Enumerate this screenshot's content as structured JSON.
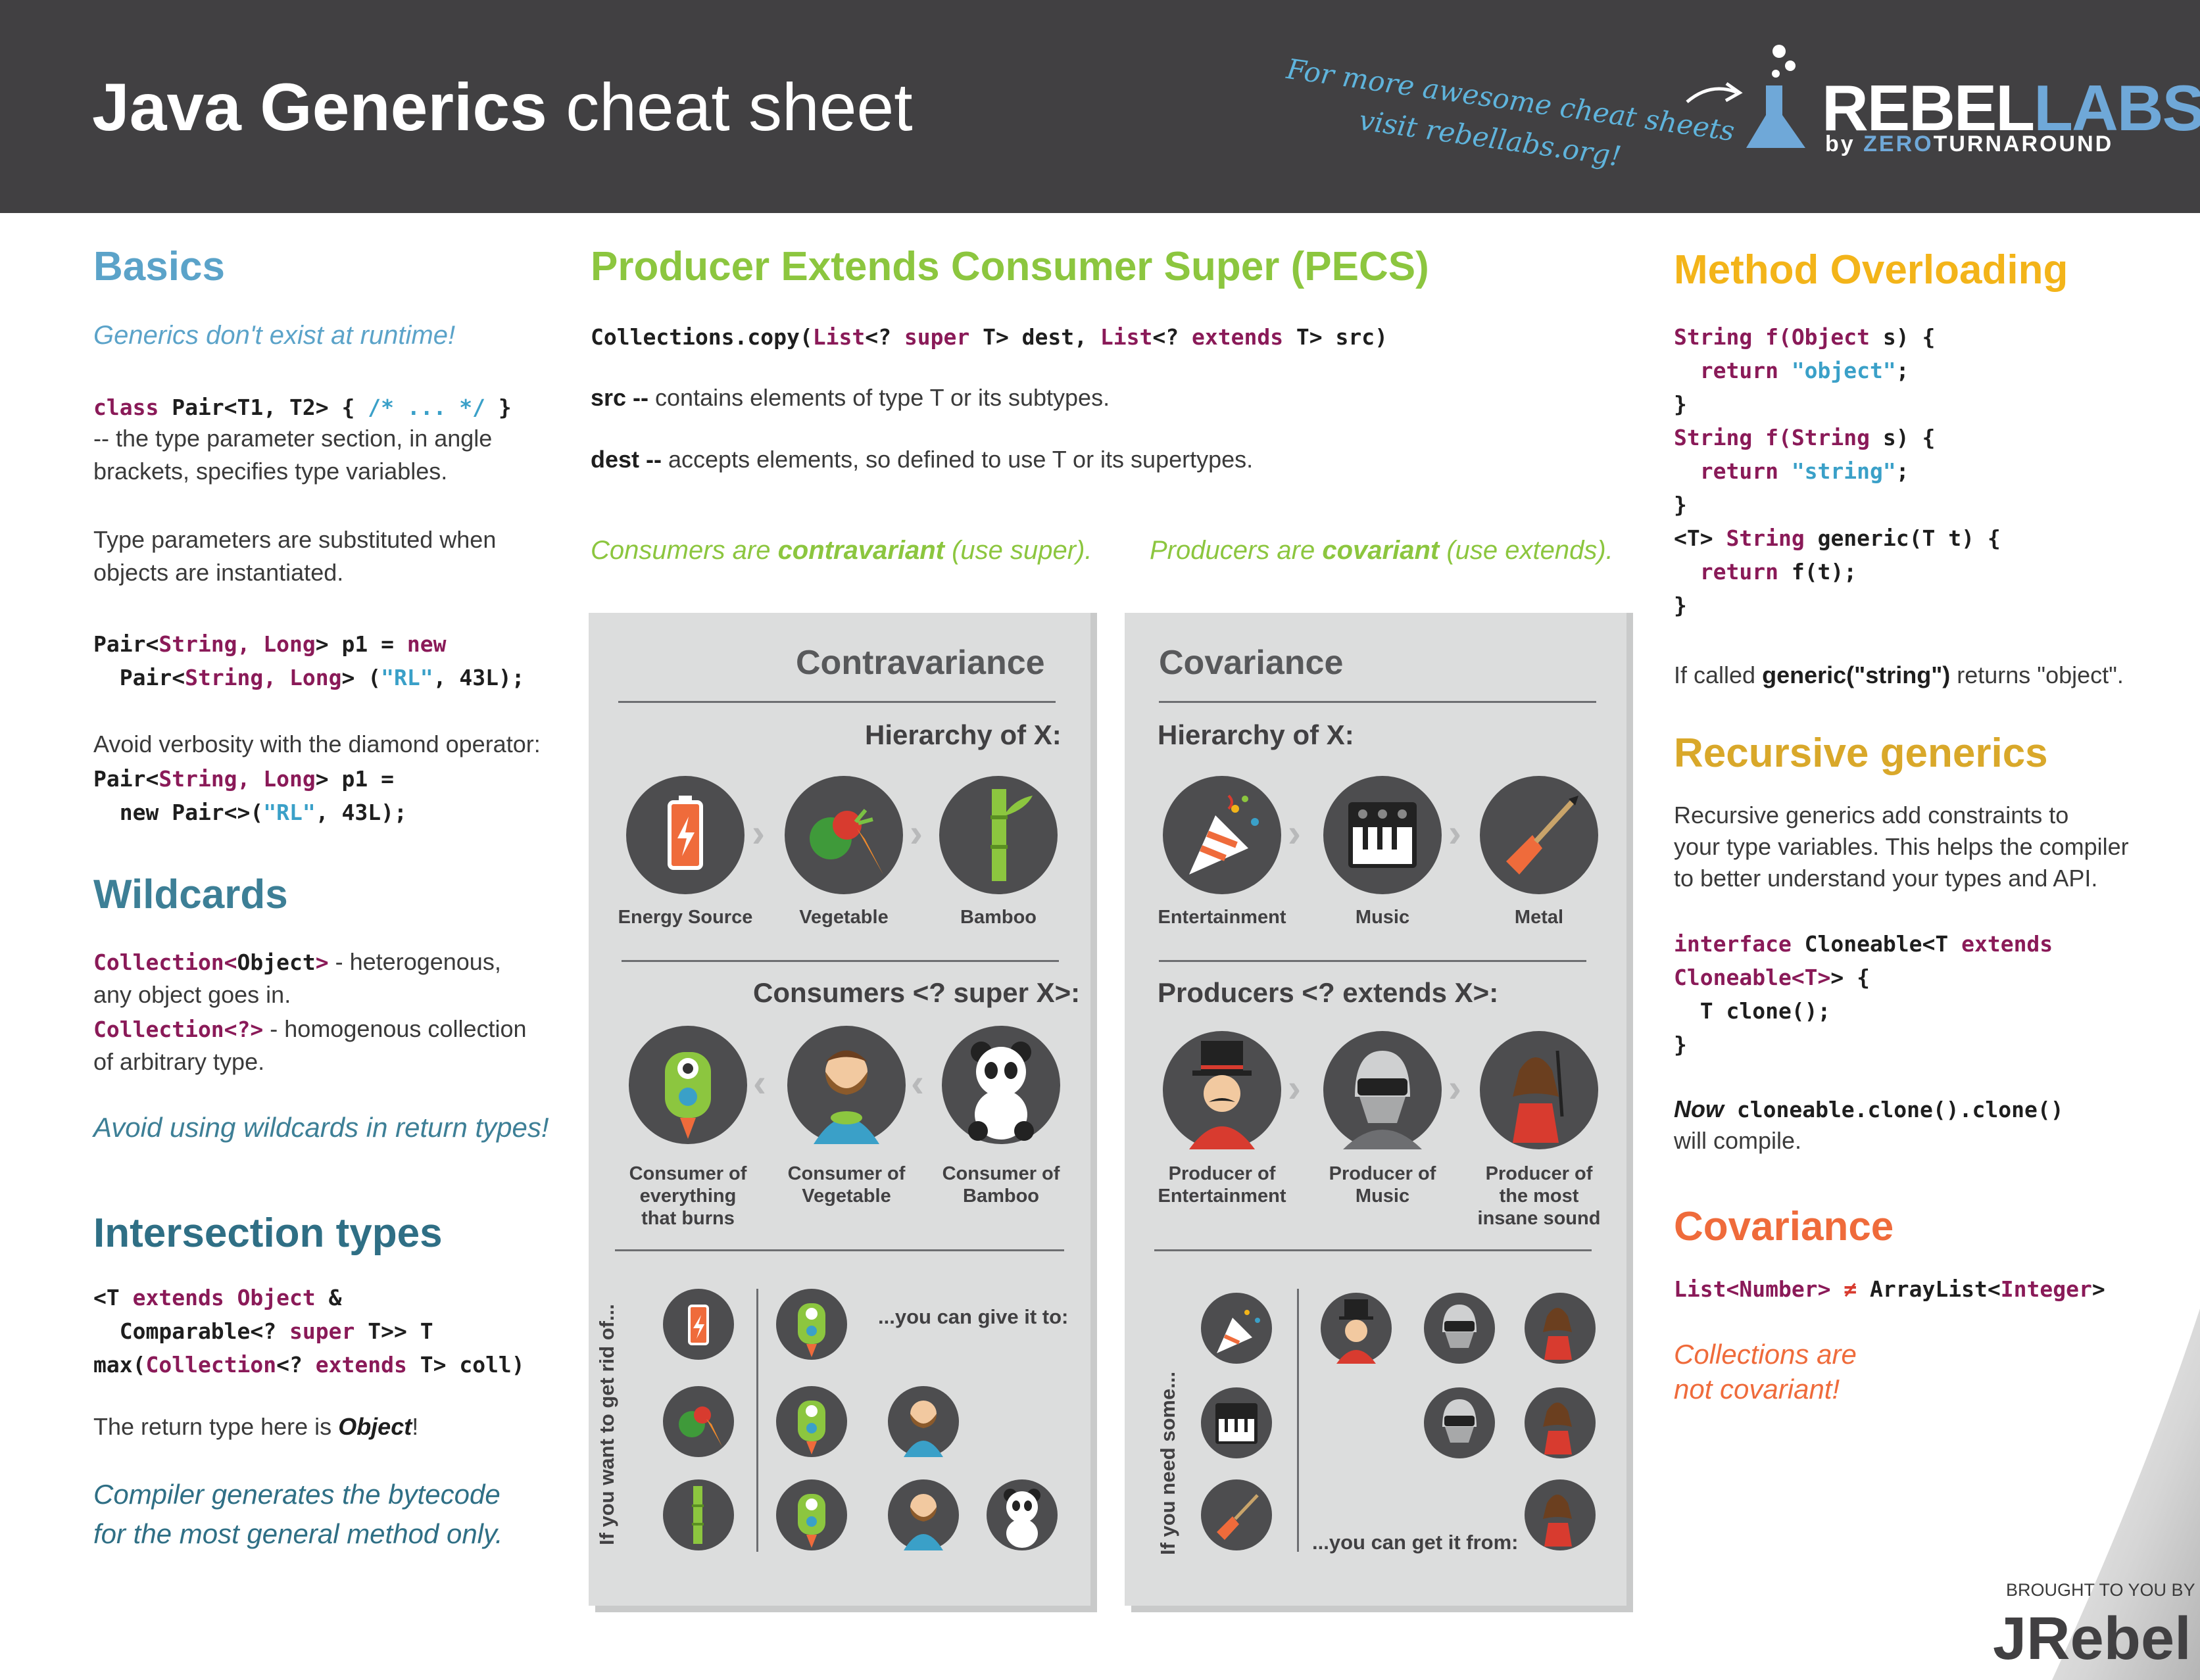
{
  "header": {
    "title_bold": "Java Generics",
    "title_light": "cheat sheet",
    "promo_line1": "For more awesome cheat sheets",
    "promo_line2": "visit rebellabs.org!",
    "logo_rebel": "REBEL",
    "logo_labs": "LABS",
    "logo_by": "by ",
    "logo_zero": "ZERO",
    "logo_turnaround": "TURNAROUND"
  },
  "basics": {
    "heading": "Basics",
    "tagline": "Generics don't exist at runtime!",
    "pair_kw": "class",
    "pair_rest": " Pair<T1, T2> { ",
    "pair_comment": "/* ... */",
    "pair_end": " }",
    "pair_desc1": "-- the type parameter section, in angle",
    "pair_desc2": "brackets, specifies type variables.",
    "subst1": "Type parameters are substituted when",
    "subst2": "objects are instantiated.",
    "p1_a": "Pair<",
    "p1_b": "String, Long",
    "p1_c": "> p1 = ",
    "p1_new": "new",
    "p2_a": "  Pair<",
    "p2_b": "String, Long",
    "p2_c": "> (",
    "p2_str": "\"RL\"",
    "p2_d": ", 43L);",
    "diamond": "Avoid verbosity with the diamond operator:",
    "d1_a": "Pair<",
    "d1_b": "String, Long",
    "d1_c": "> p1 =",
    "d2_a": "  new Pair<>(",
    "d2_str": "\"RL\"",
    "d2_b": ", 43L);"
  },
  "wildcards": {
    "heading": "Wildcards",
    "w1_code_a": "Collection<",
    "w1_code_b": "Object",
    "w1_code_c": ">",
    "w1_text": " - heterogenous,",
    "w1_text2": "any object goes in.",
    "w2_code": "Collection<?>",
    "w2_text": " - homogenous collection",
    "w2_text2": "of arbitrary type.",
    "tip": "Avoid using wildcards in return types!"
  },
  "intersection": {
    "heading": "Intersection types",
    "l1_a": "<T ",
    "l1_kw": "extends",
    "l1_b": " ",
    "l1_obj": "Object",
    "l1_c": " &",
    "l2_a": "  Comparable<? ",
    "l2_kw": "super",
    "l2_b": " T>> T",
    "l3_a": "max(",
    "l3_coll": "Collection",
    "l3_b": "<? ",
    "l3_kw": "extends",
    "l3_c": " T> coll)",
    "ret_a": "The return type here is ",
    "ret_b": "Object",
    "ret_c": "!",
    "tip1": "Compiler generates the bytecode",
    "tip2": "for the most general method only."
  },
  "pecs": {
    "heading": "Producer Extends Consumer Super (PECS)",
    "sig_a": "Collections.copy(",
    "sig_list1": "List",
    "sig_b": "<? ",
    "sig_super": "super",
    "sig_c": " T> dest, ",
    "sig_list2": "List",
    "sig_d": "<? ",
    "sig_extends": "extends",
    "sig_e": " T> src)",
    "src_b": "src --",
    "src_t": " contains elements of type T or its subtypes.",
    "dest_b": "dest --",
    "dest_t": " accepts elements, so defined to use T or its supertypes.",
    "cons_a": "Consumers are ",
    "cons_b": "contravariant",
    "cons_c": " (use super).",
    "prod_a": "Producers are ",
    "prod_b": "covariant",
    "prod_c": " (use extends)."
  },
  "contra": {
    "heading": "Contravariance",
    "hier": "Hierarchy of X:",
    "h": [
      "Energy Source",
      "Vegetable",
      "Bamboo"
    ],
    "cons": "Consumers <? super X>:",
    "c": [
      "Consumer of\neverything\nthat burns",
      "Consumer of\nVegetable",
      "Consumer of\nBamboo"
    ],
    "side": "If you want to get rid of...",
    "give": "...you can give it to:"
  },
  "cova": {
    "heading": "Covariance",
    "hier": "Hierarchy of X:",
    "h": [
      "Entertainment",
      "Music",
      "Metal"
    ],
    "prod": "Producers <? extends X>:",
    "p": [
      "Producer of\nEntertainment",
      "Producer of\nMusic",
      "Producer of\nthe most\ninsane sound"
    ],
    "side": "If you need some...",
    "get": "...you can get it from:"
  },
  "overloading": {
    "heading": "Method Overloading",
    "l1_a": "String f(",
    "l1_b": "Object",
    "l1_c": " s) {",
    "l2_kw": "  return ",
    "l2_str": "\"object\"",
    "l2_end": ";",
    "l3": "}",
    "l4_a": "String f(",
    "l4_b": "String",
    "l4_c": " s) {",
    "l5_kw": "  return ",
    "l5_str": "\"string\"",
    "l5_end": ";",
    "l6": "}",
    "l7_a": "<T> ",
    "l7_b": "String",
    "l7_c": " generic(T t) {",
    "l8_kw": "  return",
    "l8_rest": " f(t);",
    "l9": "}",
    "note_a": "If called ",
    "note_b": "generic(\"string\")",
    "note_c": " returns \"object\"."
  },
  "recursive": {
    "heading": "Recursive generics",
    "t1": "Recursive generics add constraints to",
    "t2": "your type variables. This helps the compiler",
    "t3": "to better understand your types and API.",
    "c1_kw": "interface",
    "c1_a": " Cloneable<T ",
    "c1_kw2": "extends",
    "c2_a": "Cloneable<T>",
    "c2_b": "> {",
    "c3": "  T clone();",
    "c4": "}",
    "now": "Now",
    "now_code": " cloneable.clone().clone()",
    "compile": "will compile."
  },
  "covariance": {
    "heading": "Covariance",
    "c_a": "List<",
    "c_b": "Number",
    "c_c": "> ",
    "c_ne": "≠",
    "c_d": " ArrayList<",
    "c_e": "Integer",
    "c_f": ">",
    "tip1": "Collections are",
    "tip2": "not covariant!"
  },
  "footer": {
    "brought": "BROUGHT TO YOU BY",
    "jrebel": "JRebel"
  },
  "colors": {
    "header_bg": "#414042",
    "basics": "#5ba3c9",
    "wildcards": "#3d7f96",
    "pecs": "#8cc63f",
    "overloading": "#f3b419",
    "recursive": "#d9a82a",
    "covariance": "#ef6b3b"
  }
}
